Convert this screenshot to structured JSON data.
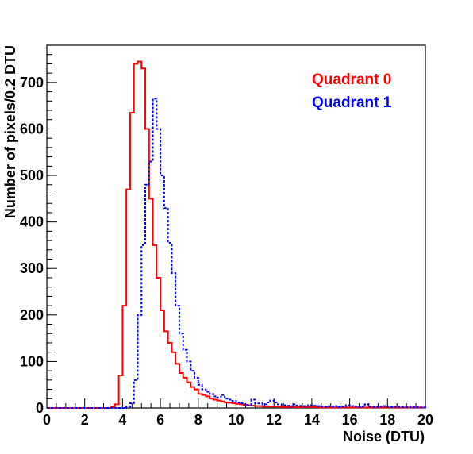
{
  "chart_data": {
    "type": "histogram-step",
    "xlabel": "Noise (DTU)",
    "ylabel": "Number of pixels/0.2 DTU",
    "xlim": [
      0,
      20
    ],
    "ylim": [
      0,
      780
    ],
    "x_ticks": [
      0,
      2,
      4,
      6,
      8,
      10,
      12,
      14,
      16,
      18,
      20
    ],
    "y_ticks": [
      0,
      100,
      200,
      300,
      400,
      500,
      600,
      700
    ],
    "x_tick_labels": [
      "0",
      "2",
      "4",
      "6",
      "8",
      "10",
      "12",
      "14",
      "16",
      "18",
      "20"
    ],
    "y_tick_labels": [
      "0",
      "100",
      "200",
      "300",
      "400",
      "500",
      "600",
      "700"
    ],
    "grid": false,
    "legend_position": "top-right",
    "bin_width": 0.2,
    "bin_start": 0,
    "series": [
      {
        "name": "Quadrant 0",
        "color": "#ff0000",
        "style": "solid",
        "values": [
          0,
          0,
          0,
          0,
          0,
          0,
          0,
          0,
          0,
          0,
          0,
          0,
          0,
          0,
          0,
          0,
          0,
          2,
          8,
          70,
          220,
          470,
          635,
          740,
          745,
          730,
          600,
          450,
          350,
          280,
          210,
          165,
          140,
          120,
          95,
          75,
          65,
          55,
          45,
          40,
          30,
          28,
          25,
          20,
          18,
          16,
          14,
          12,
          11,
          10,
          9,
          8,
          7,
          6,
          5,
          4,
          4,
          3,
          3,
          3,
          3,
          3,
          2,
          2,
          2,
          2,
          2,
          2,
          2,
          2,
          2,
          2,
          1,
          1,
          1,
          1,
          1,
          1,
          1,
          1,
          1,
          1,
          1,
          1,
          1,
          1,
          1,
          1,
          1,
          1,
          1,
          1,
          1,
          1,
          1,
          1,
          1,
          1,
          1,
          1
        ]
      },
      {
        "name": "Quadrant 1",
        "color": "#0000ff",
        "style": "dashed",
        "values": [
          0,
          0,
          0,
          0,
          0,
          0,
          0,
          0,
          0,
          0,
          0,
          0,
          0,
          0,
          0,
          0,
          0,
          0,
          0,
          0,
          0,
          3,
          10,
          60,
          200,
          350,
          480,
          530,
          665,
          600,
          500,
          430,
          355,
          290,
          220,
          160,
          125,
          100,
          80,
          65,
          50,
          40,
          35,
          30,
          25,
          22,
          28,
          20,
          18,
          15,
          12,
          10,
          8,
          6,
          18,
          10,
          10,
          8,
          12,
          16,
          12,
          8,
          6,
          5,
          4,
          8,
          5,
          4,
          4,
          6,
          5,
          4,
          3,
          3,
          4,
          3,
          4,
          2,
          3,
          6,
          4,
          3,
          2,
          3,
          8,
          3,
          2,
          2,
          3,
          4,
          2,
          2,
          3,
          2,
          2,
          2,
          1,
          2,
          1,
          1
        ]
      }
    ]
  }
}
